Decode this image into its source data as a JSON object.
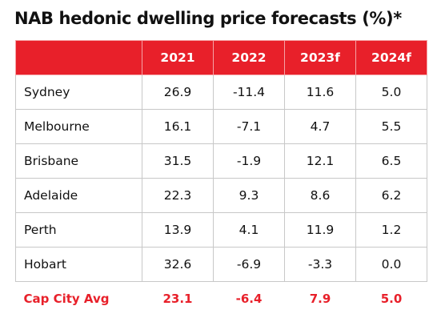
{
  "title": "NAB hedonic dwelling price forecasts (%)*",
  "table": {
    "headers": [
      "",
      "2021",
      "2022",
      "2023f",
      "2024f"
    ],
    "rows": [
      {
        "city": "Sydney",
        "values": [
          "26.9",
          "-11.4",
          "11.6",
          "5.0"
        ]
      },
      {
        "city": "Melbourne",
        "values": [
          "16.1",
          "-7.1",
          "4.7",
          "5.5"
        ]
      },
      {
        "city": "Brisbane",
        "values": [
          "31.5",
          "-1.9",
          "12.1",
          "6.5"
        ]
      },
      {
        "city": "Adelaide",
        "values": [
          "22.3",
          "9.3",
          "8.6",
          "6.2"
        ]
      },
      {
        "city": "Perth",
        "values": [
          "13.9",
          "4.1",
          "11.9",
          "1.2"
        ]
      },
      {
        "city": "Hobart",
        "values": [
          "32.6",
          "-6.9",
          "-3.3",
          "0.0"
        ]
      }
    ],
    "summary": {
      "city": "Cap City Avg",
      "values": [
        "23.1",
        "-6.4",
        "7.9",
        "5.0"
      ]
    }
  },
  "colors": {
    "header_background": "#e8202a",
    "header_text": "#ffffff",
    "summary_text": "#e8202a",
    "border": "#c8c8c8"
  }
}
